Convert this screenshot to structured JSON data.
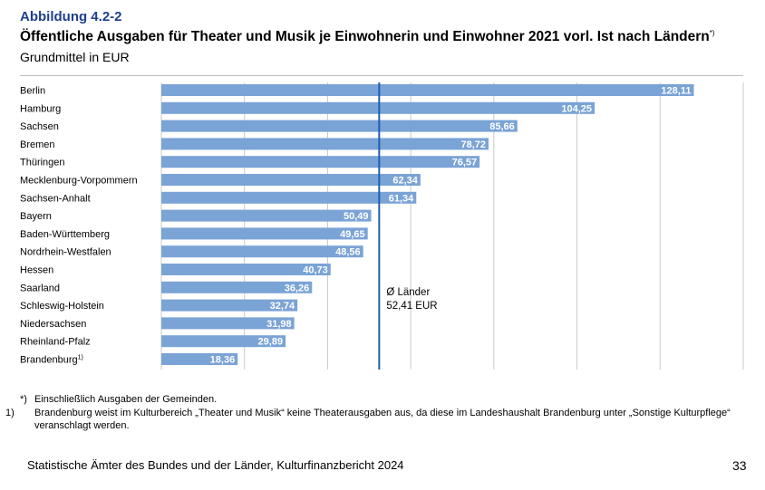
{
  "header": {
    "figure_label": "Abbildung 4.2-2",
    "title": "Öffentliche Ausgaben für Theater und Musik je Einwohnerin und Einwohner 2021 vorl. Ist nach Ländern",
    "title_note": "*)",
    "subtitle": "Grundmittel in EUR"
  },
  "chart_data": {
    "type": "bar",
    "orientation": "horizontal",
    "categories": [
      "Berlin",
      "Hamburg",
      "Sachsen",
      "Bremen",
      "Thüringen",
      "Mecklenburg-Vorpommern",
      "Sachsen-Anhalt",
      "Bayern",
      "Baden-Württemberg",
      "Nordrhein-Westfalen",
      "Hessen",
      "Saarland",
      "Schleswig-Holstein",
      "Niedersachsen",
      "Rheinland-Pfalz",
      "Brandenburg"
    ],
    "category_notes": [
      "",
      "",
      "",
      "",
      "",
      "",
      "",
      "",
      "",
      "",
      "",
      "",
      "",
      "",
      "",
      "1)"
    ],
    "values": [
      128.11,
      104.25,
      85.66,
      78.72,
      76.57,
      62.34,
      61.34,
      50.49,
      49.65,
      48.56,
      40.73,
      36.26,
      32.74,
      31.98,
      29.89,
      18.36
    ],
    "value_labels": [
      "128,11",
      "104,25",
      "85,66",
      "78,72",
      "76,57",
      "62,34",
      "61,34",
      "50,49",
      "49,65",
      "48,56",
      "40,73",
      "36,26",
      "32,74",
      "31,98",
      "29,89",
      "18,36"
    ],
    "xlim": [
      0,
      140
    ],
    "grid_step": 20,
    "reference_line": {
      "value": 52.41,
      "label_line1": "Ø Länder",
      "label_line2": "52,41 EUR"
    },
    "colors": {
      "bar": "#7aa3d6",
      "reference": "#1f5fb0",
      "grid": "#c9c9c9"
    }
  },
  "footnotes": [
    {
      "marker": "*)",
      "text": "Einschließlich Ausgaben der Gemeinden."
    },
    {
      "marker": "1)",
      "text": "Brandenburg weist im Kulturbereich „Theater und Musik“ keine Theaterausgaben aus, da diese im Landeshaushalt Brandenburg unter „Sonstige Kulturpflege“ veranschlagt werden."
    }
  ],
  "footer": {
    "source": "Statistische Ämter des Bundes und der Länder, Kulturfinanzbericht 2024",
    "page_number": "33"
  }
}
